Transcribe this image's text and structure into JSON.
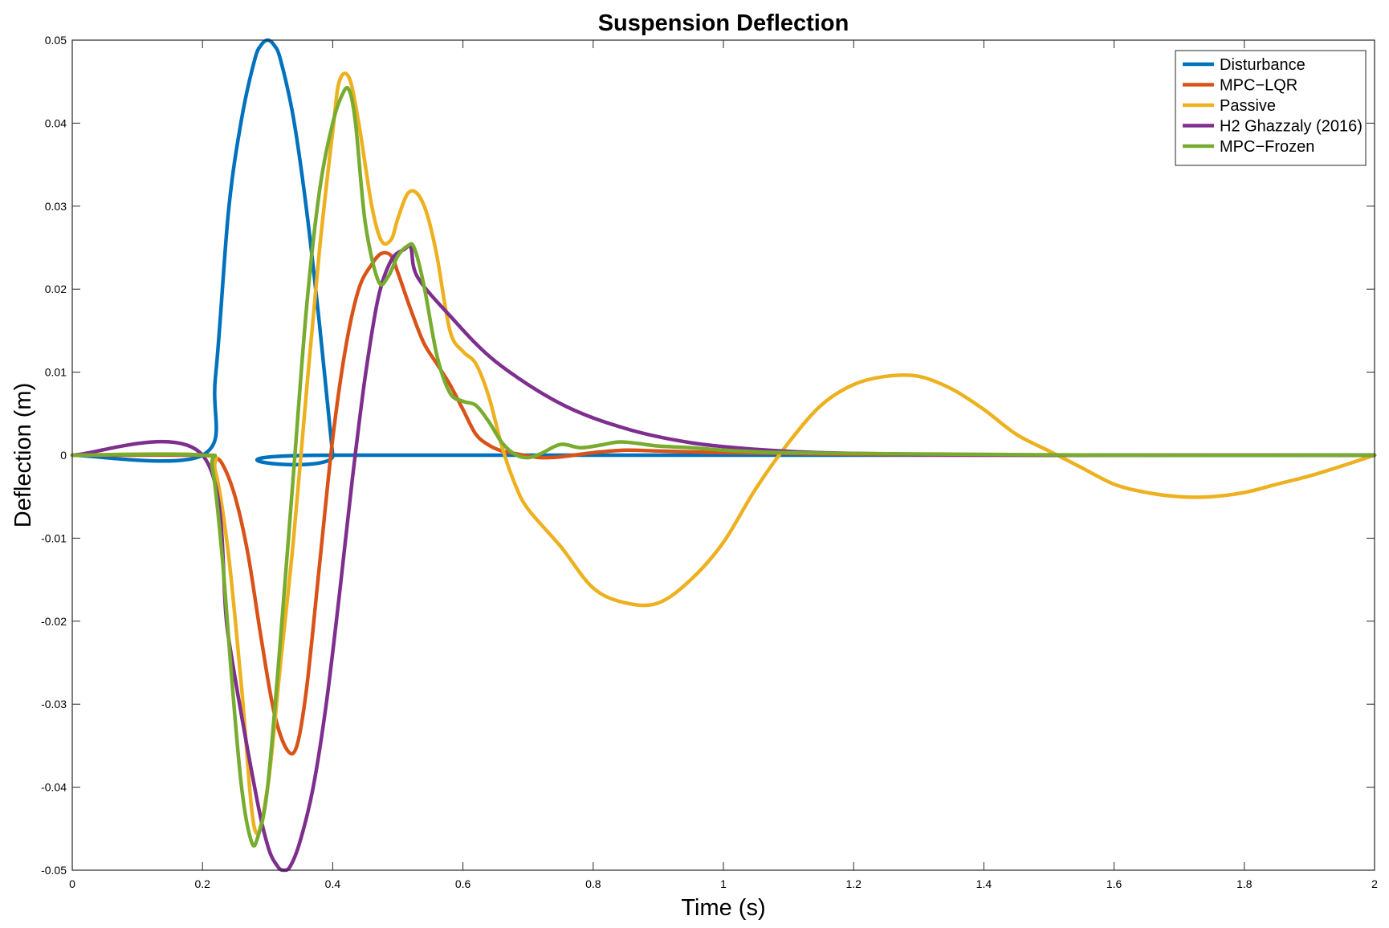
{
  "chart_data": {
    "type": "line",
    "title": "Suspension Deflection",
    "xlabel": "Time (s)",
    "ylabel": "Deflection (m)",
    "xlim": [
      0,
      2
    ],
    "ylim": [
      -0.05,
      0.05
    ],
    "xticks": [
      0,
      0.2,
      0.4,
      0.6,
      0.8,
      1,
      1.2,
      1.4,
      1.6,
      1.8,
      2
    ],
    "xtick_labels": [
      "0",
      "0.2",
      "0.4",
      "0.6",
      "0.8",
      "1",
      "1.2",
      "1.4",
      "1.6",
      "1.8",
      "2"
    ],
    "yticks": [
      -0.05,
      -0.04,
      -0.03,
      -0.02,
      -0.01,
      0,
      0.01,
      0.02,
      0.03,
      0.04,
      0.05
    ],
    "ytick_labels": [
      "-0.05",
      "-0.04",
      "-0.03",
      "-0.02",
      "-0.01",
      "0",
      "0.01",
      "0.02",
      "0.03",
      "0.04",
      "0.05"
    ],
    "grid": false,
    "legend_position": "top-right",
    "series": [
      {
        "name": "Disturbance",
        "color": "#0072BD",
        "x": [
          0,
          0.2,
          0.22,
          0.24,
          0.26,
          0.28,
          0.29,
          0.3,
          0.31,
          0.32,
          0.34,
          0.36,
          0.38,
          0.4,
          0.402,
          2
        ],
        "y": [
          0,
          0,
          0.0095,
          0.0294,
          0.0405,
          0.0476,
          0.0494,
          0.05,
          0.0494,
          0.0476,
          0.0405,
          0.0294,
          0.0155,
          0,
          0,
          0
        ]
      },
      {
        "name": "MPC−LQR",
        "color": "#D95319",
        "x": [
          0,
          0.2,
          0.215,
          0.23,
          0.25,
          0.27,
          0.29,
          0.31,
          0.33,
          0.345,
          0.36,
          0.38,
          0.4,
          0.42,
          0.44,
          0.46,
          0.475,
          0.49,
          0.5,
          0.52,
          0.54,
          0.56,
          0.58,
          0.6,
          0.62,
          0.64,
          0.66,
          0.68,
          0.7,
          0.72,
          0.75,
          0.8,
          0.85,
          0.9,
          0.95,
          1.0,
          1.1,
          1.2,
          1.4,
          1.6,
          1.8,
          2.0
        ],
        "y": [
          0,
          0,
          -0.0002,
          -0.001,
          -0.005,
          -0.012,
          -0.022,
          -0.031,
          -0.0355,
          -0.035,
          -0.028,
          -0.013,
          0.002,
          0.013,
          0.02,
          0.023,
          0.0243,
          0.024,
          0.022,
          0.0175,
          0.0135,
          0.011,
          0.0085,
          0.0055,
          0.0025,
          0.0012,
          0.0005,
          0.0002,
          -0.0001,
          -0.0003,
          -0.0002,
          0.0003,
          0.0006,
          0.0005,
          0.0004,
          0.0003,
          0.0002,
          0.0001,
          0,
          0,
          0,
          0
        ]
      },
      {
        "name": "Passive",
        "color": "#EDB120",
        "x": [
          0,
          0.2,
          0.22,
          0.24,
          0.26,
          0.28,
          0.3,
          0.32,
          0.34,
          0.36,
          0.38,
          0.4,
          0.41,
          0.425,
          0.44,
          0.46,
          0.475,
          0.49,
          0.5,
          0.515,
          0.53,
          0.545,
          0.56,
          0.58,
          0.6,
          0.62,
          0.64,
          0.66,
          0.68,
          0.7,
          0.75,
          0.8,
          0.85,
          0.9,
          0.95,
          1.0,
          1.05,
          1.1,
          1.15,
          1.2,
          1.25,
          1.3,
          1.35,
          1.4,
          1.45,
          1.5,
          1.55,
          1.6,
          1.65,
          1.7,
          1.75,
          1.8,
          1.85,
          1.9,
          1.95,
          2.0
        ],
        "y": [
          0,
          0,
          -0.002,
          -0.012,
          -0.028,
          -0.045,
          -0.04,
          -0.025,
          -0.01,
          0.008,
          0.025,
          0.039,
          0.045,
          0.0455,
          0.04,
          0.03,
          0.0258,
          0.026,
          0.0285,
          0.0315,
          0.0315,
          0.029,
          0.024,
          0.015,
          0.0125,
          0.011,
          0.007,
          0.001,
          -0.0035,
          -0.0065,
          -0.011,
          -0.016,
          -0.0178,
          -0.0178,
          -0.015,
          -0.0105,
          -0.004,
          0.0015,
          0.006,
          0.0085,
          0.0095,
          0.0095,
          0.008,
          0.0055,
          0.0025,
          0.0005,
          -0.0015,
          -0.0035,
          -0.0045,
          -0.005,
          -0.005,
          -0.0045,
          -0.0035,
          -0.0025,
          -0.0013,
          0
        ]
      },
      {
        "name": "H2 Ghazzaly (2016)",
        "color": "#7E2F8E",
        "x": [
          0,
          0.2,
          0.24,
          0.28,
          0.3,
          0.315,
          0.325,
          0.335,
          0.35,
          0.37,
          0.39,
          0.41,
          0.43,
          0.45,
          0.47,
          0.49,
          0.51,
          0.52,
          0.53,
          0.58,
          0.65,
          0.75,
          0.85,
          0.95,
          1.05,
          1.15,
          1.3,
          1.5,
          2.0
        ],
        "y": [
          0,
          0,
          -0.022,
          -0.04,
          -0.047,
          -0.0495,
          -0.05,
          -0.0495,
          -0.0465,
          -0.04,
          -0.03,
          -0.017,
          -0.003,
          0.0095,
          0.019,
          0.0235,
          0.0248,
          0.025,
          0.0215,
          0.0168,
          0.0113,
          0.0062,
          0.0032,
          0.0015,
          0.0007,
          0.0003,
          0.0001,
          0,
          0
        ]
      },
      {
        "name": "MPC−Frozen",
        "color": "#77AC30",
        "x": [
          0,
          0.2,
          0.215,
          0.23,
          0.245,
          0.26,
          0.275,
          0.285,
          0.3,
          0.32,
          0.34,
          0.36,
          0.38,
          0.4,
          0.415,
          0.425,
          0.435,
          0.45,
          0.47,
          0.485,
          0.5,
          0.515,
          0.525,
          0.54,
          0.56,
          0.58,
          0.6,
          0.62,
          0.64,
          0.66,
          0.68,
          0.7,
          0.72,
          0.75,
          0.78,
          0.81,
          0.84,
          0.87,
          0.9,
          0.95,
          1.0,
          1.05,
          1.1,
          1.2,
          1.4,
          1.6,
          2.0
        ],
        "y": [
          0,
          0,
          -0.0015,
          -0.012,
          -0.027,
          -0.04,
          -0.0465,
          -0.046,
          -0.04,
          -0.022,
          -0.002,
          0.018,
          0.032,
          0.04,
          0.0435,
          0.044,
          0.04,
          0.028,
          0.021,
          0.0215,
          0.024,
          0.0252,
          0.025,
          0.0205,
          0.012,
          0.0075,
          0.0065,
          0.006,
          0.004,
          0.0015,
          0.0001,
          -0.0003,
          0.0002,
          0.0013,
          0.0009,
          0.0012,
          0.0016,
          0.0014,
          0.0011,
          0.0009,
          0.0006,
          0.0004,
          0.0003,
          0.0002,
          0.0001,
          0,
          0
        ]
      }
    ]
  }
}
